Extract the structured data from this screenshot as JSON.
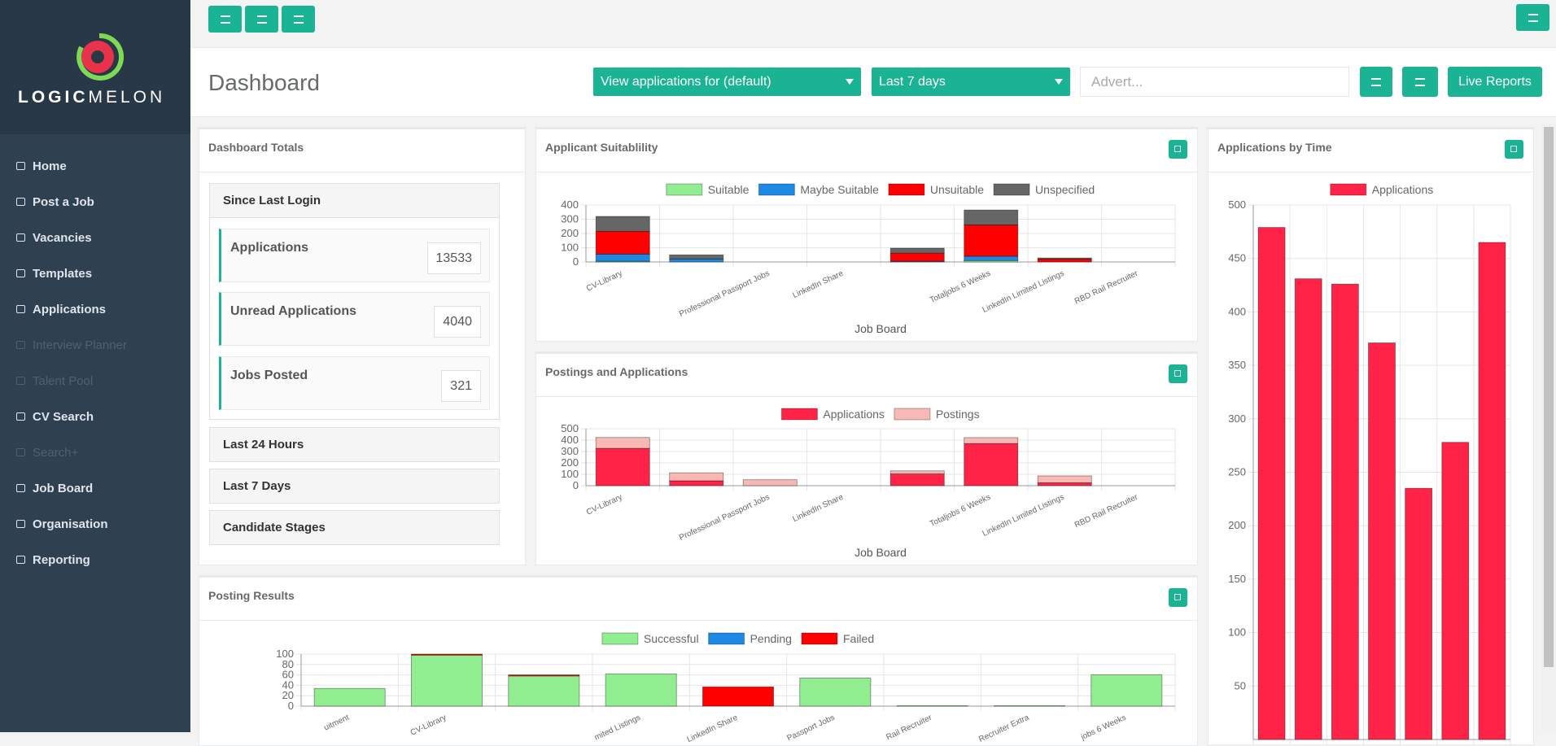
{
  "sidebar": {
    "logo": [
      "LOGIC",
      "MELON"
    ],
    "menu": [
      {
        "label": "Home",
        "disabled": false
      },
      {
        "label": "Post a Job",
        "disabled": false
      },
      {
        "label": "Vacancies",
        "disabled": false
      },
      {
        "label": "Templates",
        "disabled": false
      },
      {
        "label": "Applications",
        "disabled": false
      },
      {
        "label": "Interview Planner",
        "disabled": true
      },
      {
        "label": "Talent Pool",
        "disabled": true
      },
      {
        "label": "CV Search",
        "disabled": false
      },
      {
        "label": "Search+",
        "disabled": true
      },
      {
        "label": "Job Board",
        "disabled": false
      },
      {
        "label": "Organisation",
        "disabled": false
      },
      {
        "label": "Reporting",
        "disabled": false
      }
    ]
  },
  "header": {
    "title": "Dashboard",
    "applications_filter": "View applications for (default)",
    "period": "Last 7 days",
    "advert_placeholder": "Advert...",
    "live_reports": "Live Reports"
  },
  "totals": {
    "title": "Dashboard Totals",
    "since_last_login": {
      "title": "Since Last Login",
      "items": [
        {
          "label": "Applications",
          "value": 13533
        },
        {
          "label": "Unread Applications",
          "value": 4040
        },
        {
          "label": "Jobs Posted",
          "value": 321
        }
      ]
    },
    "sections": [
      "Last 24 Hours",
      "Last 7 Days",
      "Candidate Stages"
    ]
  },
  "charts": {
    "applicant_suitability": {
      "type": "bar",
      "stacked": true,
      "title": "Applicant Suitablility",
      "x_label": "Job Board",
      "categories": [
        "CV-Library",
        null,
        "Professional Passport Jobs",
        "LinkedIn Share",
        null,
        "Totaljobs 6 Weeks",
        "LinkedIn Limited Listings",
        "RBD Rail Recruiter"
      ],
      "series": [
        {
          "name": "Suitable",
          "color": "#90ee90",
          "values": [
            5,
            0,
            0,
            0,
            0,
            10,
            0,
            0
          ]
        },
        {
          "name": "Maybe Suitable",
          "color": "#1e88e5",
          "values": [
            50,
            20,
            0,
            0,
            5,
            30,
            0,
            0
          ]
        },
        {
          "name": "Unsuitable",
          "color": "#ff0000",
          "values": [
            160,
            0,
            0,
            0,
            57,
            220,
            20,
            0
          ]
        },
        {
          "name": "Unspecified",
          "color": "#666666",
          "values": [
            105,
            30,
            0,
            0,
            35,
            105,
            8,
            0
          ]
        }
      ],
      "ylim": [
        0,
        400
      ],
      "yticks": [
        0,
        100,
        200,
        300,
        400
      ]
    },
    "postings_and_applications": {
      "type": "bar",
      "stacked": true,
      "title": "Postings and Applications",
      "x_label": "Job Board",
      "categories": [
        "CV-Library",
        null,
        "Professional Passport Jobs",
        "LinkedIn Share",
        null,
        "Totaljobs 6 Weeks",
        "LinkedIn Limited Listings",
        "RBD Rail Recruiter"
      ],
      "series": [
        {
          "name": "Applications",
          "color": "#ff2347",
          "values": [
            328,
            43,
            0,
            0,
            103,
            370,
            26,
            0
          ]
        },
        {
          "name": "Postings",
          "color": "#f8b9b4",
          "values": [
            95,
            70,
            52,
            0,
            27,
            52,
            60,
            0
          ]
        }
      ],
      "ylim": [
        0,
        500
      ],
      "yticks": [
        0,
        100,
        200,
        300,
        400,
        500
      ]
    },
    "applications_by_time": {
      "type": "bar",
      "stacked": false,
      "title": "Applications by Time",
      "series": [
        {
          "name": "Applications",
          "color": "#ff2347",
          "values": [
            479,
            431,
            426,
            371,
            235,
            278,
            465
          ]
        }
      ],
      "ylim": [
        0,
        500
      ],
      "yticks": [
        50,
        100,
        150,
        200,
        250,
        300,
        350,
        400,
        450,
        500
      ]
    },
    "posting_results": {
      "type": "bar",
      "stacked": true,
      "title": "Posting Results",
      "categories": [
        "uitment",
        "CV-Library",
        null,
        "mited Listings",
        "LinkedIn Share",
        "Passport Jobs",
        "Rail Recruiter",
        "Recruiter Extra",
        "jobs 6 Weeks"
      ],
      "series": [
        {
          "name": "Successful",
          "color": "#90ee90",
          "values": [
            34,
            98,
            58,
            62,
            0,
            54,
            1,
            1,
            60
          ]
        },
        {
          "name": "Pending",
          "color": "#1e88e5",
          "values": [
            0,
            0,
            0,
            0,
            0,
            0,
            0,
            0,
            0
          ]
        },
        {
          "name": "Failed",
          "color": "#ff0000",
          "values": [
            0,
            2,
            2,
            0,
            37,
            0,
            0,
            0,
            0
          ]
        }
      ],
      "ylim": [
        0,
        100
      ],
      "yticks": [
        0,
        20,
        40,
        60,
        80,
        100
      ]
    }
  }
}
